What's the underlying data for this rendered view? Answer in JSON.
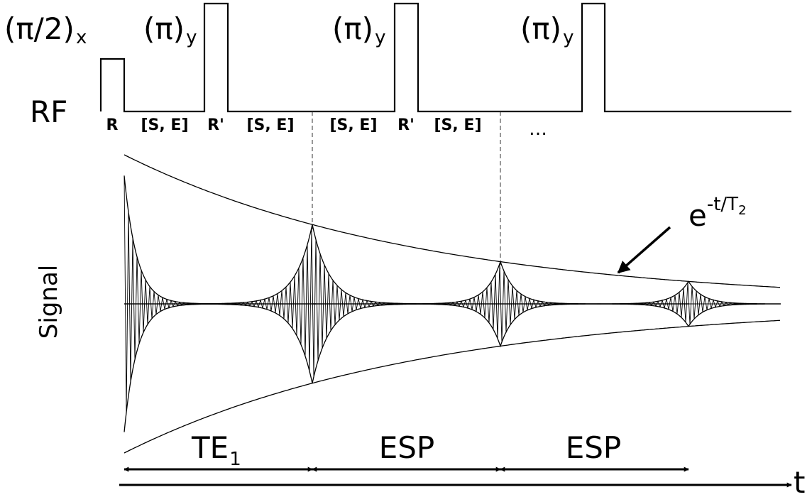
{
  "pulses": {
    "excitation": {
      "main": "(π/2)",
      "sub": "x"
    },
    "refocus": [
      {
        "main": "(π)",
        "sub": "y"
      },
      {
        "main": "(π)",
        "sub": "y"
      },
      {
        "main": "(π)",
        "sub": "y"
      }
    ]
  },
  "rf_label": "RF",
  "signal_label": "Signal",
  "segments": [
    "R",
    "[S, E]",
    "R'",
    "[S, E]",
    "[S, E]",
    "R'",
    "[S, E]",
    "…"
  ],
  "decay": {
    "base": "e",
    "exponent": "-t/T",
    "exponent_sub": "2"
  },
  "intervals": [
    {
      "main": "TE",
      "sub": "1"
    },
    {
      "main": "ESP",
      "sub": ""
    },
    {
      "main": "ESP",
      "sub": ""
    }
  ],
  "time_axis_label": "t"
}
